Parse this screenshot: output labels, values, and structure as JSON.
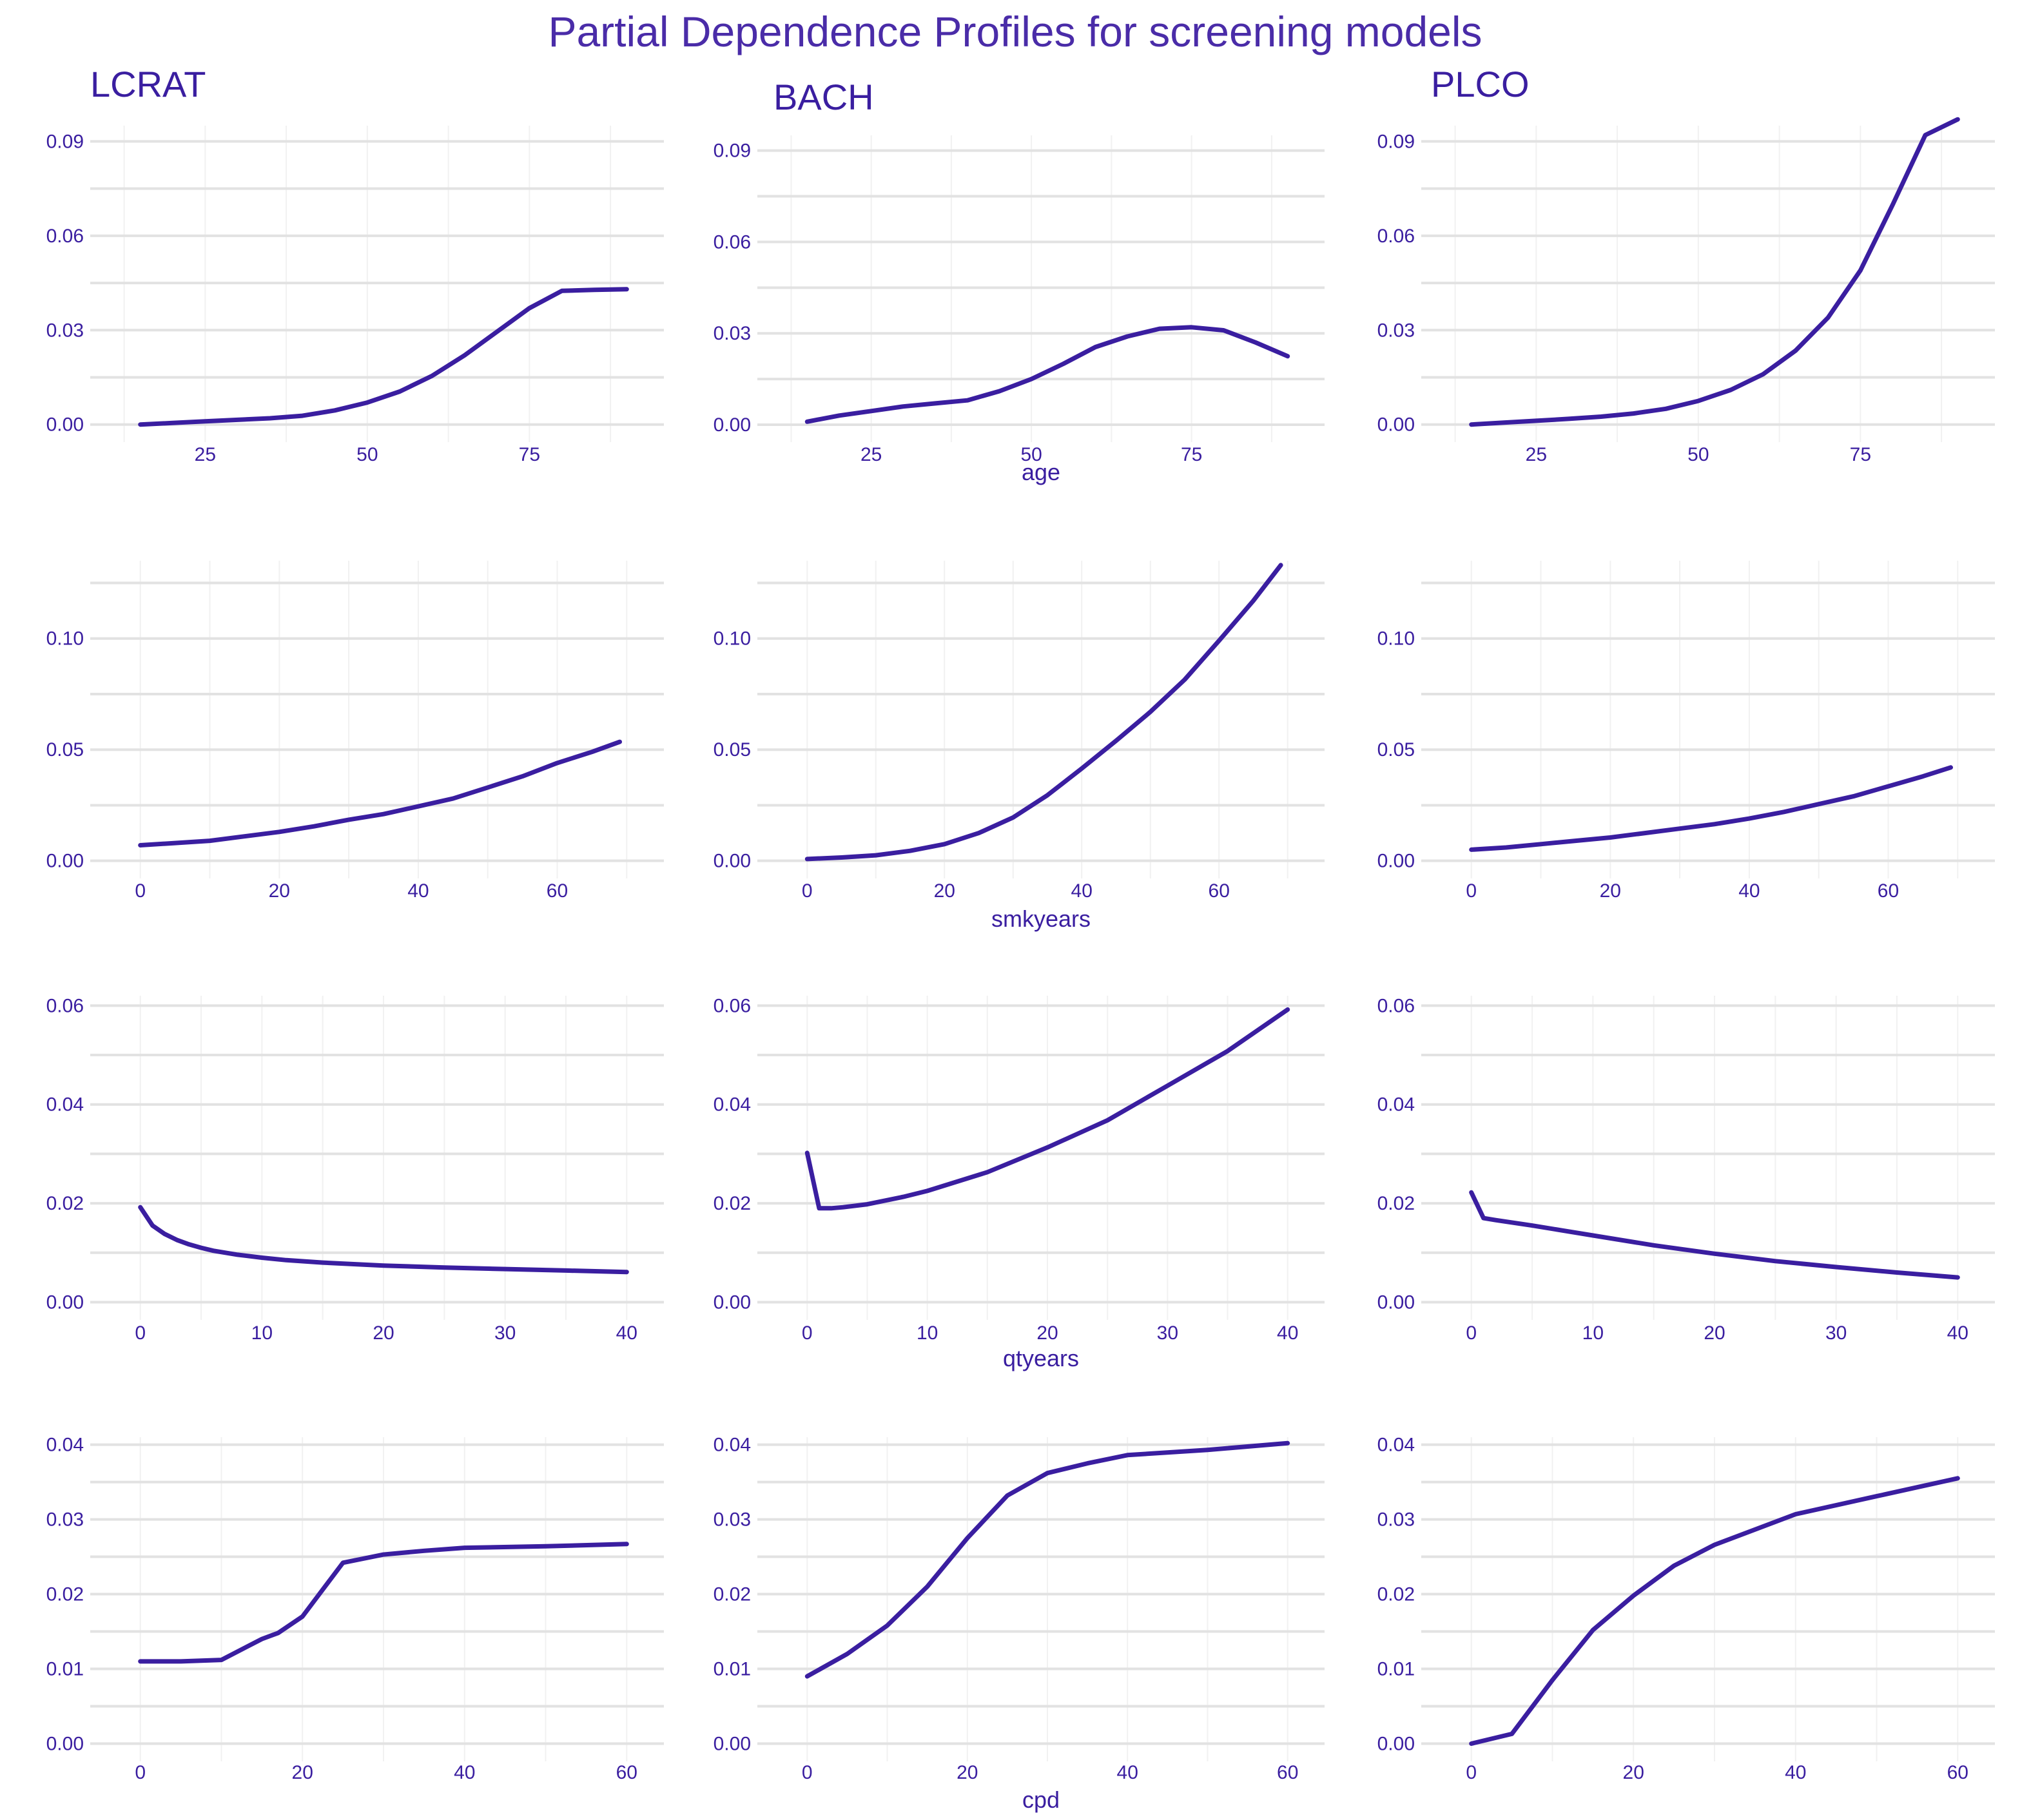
{
  "title": "Partial Dependence Profiles for screening models",
  "colors": {
    "line": "#3a1ea0",
    "title": "#4a2ca8",
    "text": "#3a1ea0"
  },
  "chart_data": [
    {
      "type": "line",
      "model": "LCRAT",
      "variable": "age",
      "xlabel": "",
      "xlim": [
        15,
        90
      ],
      "ylim": [
        0,
        0.095
      ],
      "yticks": [
        "0.00",
        "0.03",
        "0.06",
        "0.09"
      ],
      "xticks": [
        25,
        50,
        75
      ],
      "x": [
        15,
        20,
        25,
        30,
        35,
        40,
        45,
        50,
        55,
        60,
        65,
        70,
        75,
        80,
        85,
        90
      ],
      "y": [
        0.0,
        0.0005,
        0.001,
        0.0015,
        0.002,
        0.0028,
        0.0045,
        0.007,
        0.0105,
        0.0155,
        0.022,
        0.0295,
        0.037,
        0.0425,
        0.0428,
        0.043
      ]
    },
    {
      "type": "line",
      "model": "BACH",
      "variable": "age",
      "xlabel": "age",
      "xlim": [
        15,
        90
      ],
      "ylim": [
        0,
        0.095
      ],
      "yticks": [
        "0.00",
        "0.03",
        "0.06",
        "0.09"
      ],
      "xticks": [
        25,
        50,
        75
      ],
      "x": [
        15,
        20,
        25,
        30,
        35,
        40,
        45,
        50,
        55,
        60,
        65,
        70,
        75,
        80,
        85,
        90
      ],
      "y": [
        0.001,
        0.003,
        0.0045,
        0.006,
        0.007,
        0.008,
        0.011,
        0.015,
        0.02,
        0.0255,
        0.029,
        0.0315,
        0.032,
        0.031,
        0.027,
        0.0225
      ]
    },
    {
      "type": "line",
      "model": "PLCO",
      "variable": "age",
      "xlabel": "",
      "xlim": [
        15,
        90
      ],
      "ylim": [
        0,
        0.095
      ],
      "yticks": [
        "0.00",
        "0.03",
        "0.06",
        "0.09"
      ],
      "xticks": [
        25,
        50,
        75
      ],
      "x": [
        15,
        20,
        25,
        30,
        35,
        40,
        45,
        50,
        55,
        60,
        65,
        70,
        75,
        80,
        85,
        90
      ],
      "y": [
        0.0,
        0.0006,
        0.0012,
        0.0018,
        0.0025,
        0.0035,
        0.005,
        0.0075,
        0.011,
        0.016,
        0.0235,
        0.034,
        0.049,
        0.07,
        0.092,
        0.097
      ]
    },
    {
      "type": "line",
      "model": "LCRAT",
      "variable": "smkyears",
      "xlabel": "",
      "xlim": [
        0,
        70
      ],
      "ylim": [
        0,
        0.135
      ],
      "yticks": [
        "0.00",
        "0.05",
        "0.10"
      ],
      "xticks": [
        0,
        20,
        40,
        60
      ],
      "x": [
        0,
        5,
        10,
        15,
        20,
        25,
        30,
        35,
        40,
        45,
        50,
        55,
        60,
        65,
        69
      ],
      "y": [
        0.007,
        0.008,
        0.009,
        0.011,
        0.013,
        0.0155,
        0.0185,
        0.021,
        0.0245,
        0.028,
        0.033,
        0.038,
        0.044,
        0.049,
        0.0535
      ]
    },
    {
      "type": "line",
      "model": "BACH",
      "variable": "smkyears",
      "xlabel": "smkyears",
      "xlim": [
        0,
        70
      ],
      "ylim": [
        0,
        0.135
      ],
      "yticks": [
        "0.00",
        "0.05",
        "0.10"
      ],
      "xticks": [
        0,
        20,
        40,
        60
      ],
      "x": [
        0,
        5,
        10,
        15,
        20,
        25,
        30,
        35,
        40,
        45,
        50,
        55,
        60,
        65,
        69
      ],
      "y": [
        0.0008,
        0.0015,
        0.0025,
        0.0045,
        0.0075,
        0.0125,
        0.0195,
        0.0295,
        0.0415,
        0.054,
        0.067,
        0.0815,
        0.099,
        0.117,
        0.133
      ]
    },
    {
      "type": "line",
      "model": "PLCO",
      "variable": "smkyears",
      "xlabel": "",
      "xlim": [
        0,
        70
      ],
      "ylim": [
        0,
        0.135
      ],
      "yticks": [
        "0.00",
        "0.05",
        "0.10"
      ],
      "xticks": [
        0,
        20,
        40,
        60
      ],
      "x": [
        0,
        5,
        10,
        15,
        20,
        25,
        30,
        35,
        40,
        45,
        50,
        55,
        60,
        65,
        69
      ],
      "y": [
        0.005,
        0.006,
        0.0075,
        0.009,
        0.0105,
        0.0125,
        0.0145,
        0.0165,
        0.019,
        0.022,
        0.0255,
        0.029,
        0.0335,
        0.038,
        0.042
      ]
    },
    {
      "type": "line",
      "model": "LCRAT",
      "variable": "qtyears",
      "xlabel": "",
      "xlim": [
        0,
        40
      ],
      "ylim": [
        0,
        0.062
      ],
      "yticks": [
        "0.00",
        "0.02",
        "0.04",
        "0.06"
      ],
      "xticks": [
        0,
        10,
        20,
        30,
        40
      ],
      "x": [
        0,
        1,
        2,
        3,
        4,
        5,
        6,
        8,
        10,
        12,
        15,
        20,
        25,
        30,
        35,
        40
      ],
      "y": [
        0.0192,
        0.0155,
        0.0138,
        0.0126,
        0.0117,
        0.011,
        0.0104,
        0.0096,
        0.009,
        0.0085,
        0.008,
        0.0074,
        0.007,
        0.0067,
        0.0064,
        0.0061
      ]
    },
    {
      "type": "line",
      "model": "BACH",
      "variable": "qtyears",
      "xlabel": "qtyears",
      "xlim": [
        0,
        40
      ],
      "ylim": [
        0,
        0.062
      ],
      "yticks": [
        "0.00",
        "0.02",
        "0.04",
        "0.06"
      ],
      "xticks": [
        0,
        10,
        20,
        30,
        40
      ],
      "x": [
        0,
        1,
        2,
        3,
        5,
        8,
        10,
        15,
        20,
        25,
        30,
        35,
        40
      ],
      "y": [
        0.0302,
        0.019,
        0.019,
        0.0192,
        0.0198,
        0.0213,
        0.0225,
        0.0263,
        0.0313,
        0.0368,
        0.0438,
        0.0508,
        0.0592
      ]
    },
    {
      "type": "line",
      "model": "PLCO",
      "variable": "qtyears",
      "xlabel": "",
      "xlim": [
        0,
        40
      ],
      "ylim": [
        0,
        0.062
      ],
      "yticks": [
        "0.00",
        "0.02",
        "0.04",
        "0.06"
      ],
      "xticks": [
        0,
        10,
        20,
        30,
        40
      ],
      "x": [
        0,
        1,
        2,
        5,
        10,
        15,
        20,
        25,
        30,
        35,
        40
      ],
      "y": [
        0.0222,
        0.017,
        0.0166,
        0.0155,
        0.0135,
        0.0115,
        0.0098,
        0.0083,
        0.0071,
        0.006,
        0.005
      ]
    },
    {
      "type": "line",
      "model": "LCRAT",
      "variable": "cpd",
      "xlabel": "",
      "xlim": [
        0,
        60
      ],
      "ylim": [
        0,
        0.041
      ],
      "yticks": [
        "0.00",
        "0.01",
        "0.02",
        "0.03",
        "0.04"
      ],
      "xticks": [
        0,
        20,
        40,
        60
      ],
      "x": [
        0,
        5,
        10,
        15,
        17,
        20,
        25,
        30,
        35,
        40,
        50,
        60
      ],
      "y": [
        0.011,
        0.011,
        0.0112,
        0.014,
        0.0148,
        0.017,
        0.0242,
        0.0253,
        0.0258,
        0.0262,
        0.0264,
        0.0267
      ]
    },
    {
      "type": "line",
      "model": "BACH",
      "variable": "cpd",
      "xlabel": "cpd",
      "xlim": [
        0,
        60
      ],
      "ylim": [
        0,
        0.041
      ],
      "yticks": [
        "0.00",
        "0.01",
        "0.02",
        "0.03",
        "0.04"
      ],
      "xticks": [
        0,
        20,
        40,
        60
      ],
      "x": [
        0,
        5,
        10,
        15,
        20,
        25,
        30,
        35,
        40,
        50,
        60
      ],
      "y": [
        0.009,
        0.012,
        0.0158,
        0.021,
        0.0275,
        0.0332,
        0.0362,
        0.0375,
        0.0386,
        0.0393,
        0.0402
      ]
    },
    {
      "type": "line",
      "model": "PLCO",
      "variable": "cpd",
      "xlabel": "",
      "xlim": [
        0,
        60
      ],
      "ylim": [
        0,
        0.041
      ],
      "yticks": [
        "0.00",
        "0.01",
        "0.02",
        "0.03",
        "0.04"
      ],
      "xticks": [
        0,
        20,
        40,
        60
      ],
      "x": [
        0,
        5,
        10,
        15,
        20,
        25,
        30,
        40,
        50,
        60
      ],
      "y": [
        0.0,
        0.0013,
        0.0085,
        0.0152,
        0.0198,
        0.0238,
        0.0266,
        0.0307,
        0.0331,
        0.0355
      ]
    }
  ]
}
